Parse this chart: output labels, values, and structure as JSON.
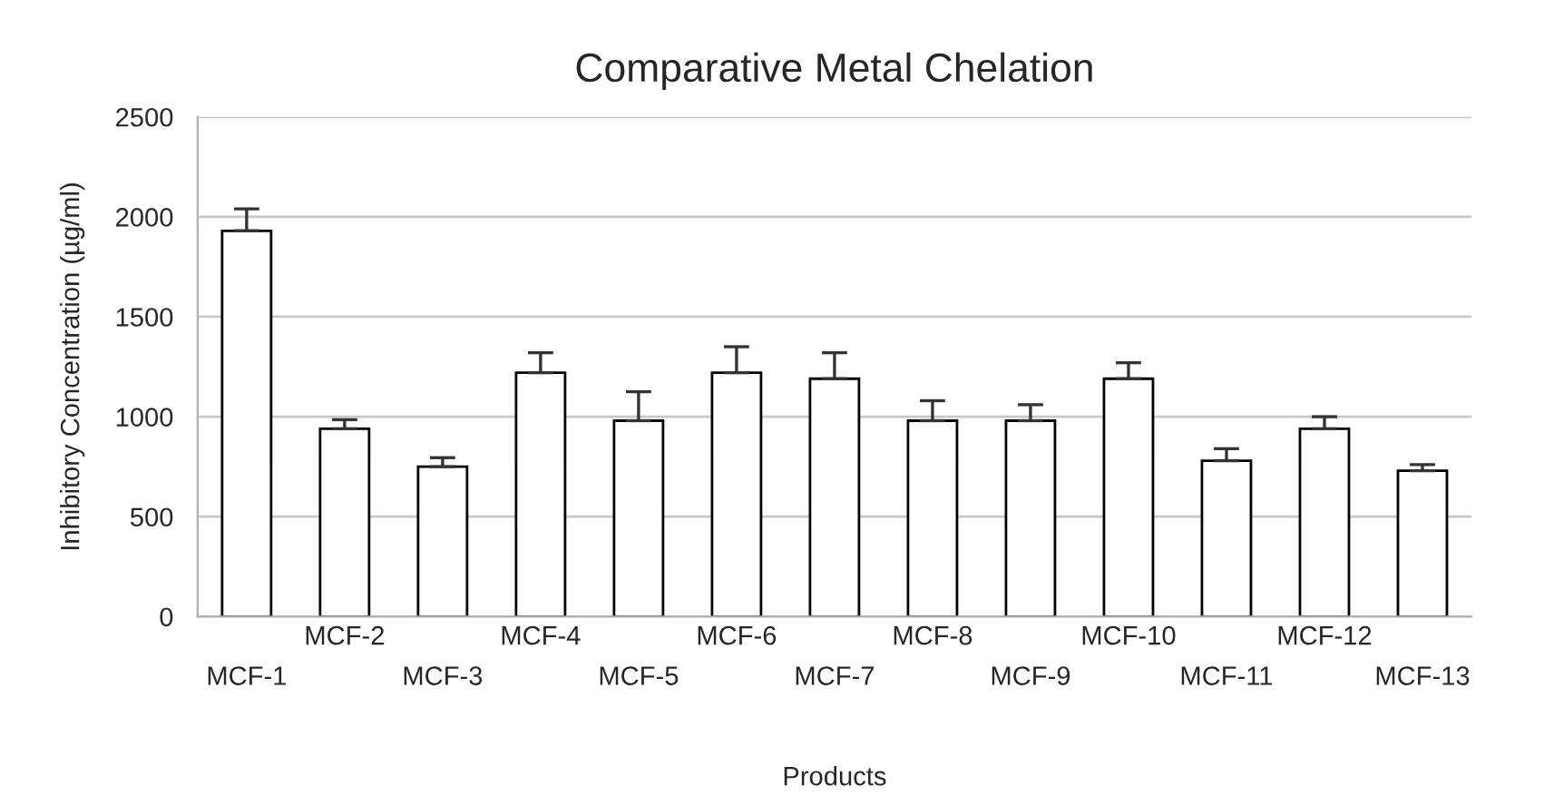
{
  "chart_data": {
    "type": "bar",
    "title": "Comparative Metal Chelation",
    "xlabel": "Products",
    "ylabel": "Inhibitory Concentration (µg/ml)",
    "categories": [
      "MCF-1",
      "MCF-2",
      "MCF-3",
      "MCF-4",
      "MCF-5",
      "MCF-6",
      "MCF-7",
      "MCF-8",
      "MCF-9",
      "MCF-10",
      "MCF-11",
      "MCF-12",
      "MCF-13"
    ],
    "values": [
      1930,
      940,
      750,
      1220,
      980,
      1220,
      1190,
      980,
      980,
      1190,
      780,
      940,
      730
    ],
    "errors": [
      110,
      45,
      45,
      100,
      145,
      130,
      130,
      100,
      80,
      80,
      60,
      60,
      30
    ],
    "color": "#ffffff",
    "ylim": [
      0,
      2500
    ],
    "yticks": [
      0,
      500,
      1000,
      1500,
      2000,
      2500
    ],
    "grid": "y",
    "legend": false
  }
}
